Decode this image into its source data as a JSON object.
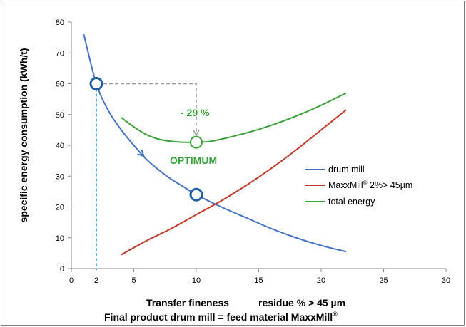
{
  "chart_data": {
    "type": "line",
    "ylabel": "specific energy consumption (kWh/t)",
    "xlabel_line1_a": "Transfer fineness",
    "xlabel_line1_b": "residue % > 45 µm",
    "xlabel_line2": "Final product drum mill  =  feed material MaxxMill",
    "xlabel_line2_sup": "®",
    "xlim": [
      0,
      30
    ],
    "ylim": [
      0,
      80
    ],
    "x_ticks": [
      "0",
      "2",
      "5",
      "10",
      "15",
      "20",
      "25",
      "30"
    ],
    "x_tick_values": [
      0,
      2,
      5,
      10,
      15,
      20,
      25,
      30
    ],
    "y_ticks": [
      "0",
      "10",
      "20",
      "30",
      "40",
      "50",
      "60",
      "70",
      "80"
    ],
    "y_tick_values": [
      0,
      10,
      20,
      30,
      40,
      50,
      60,
      70,
      80
    ],
    "legend_position": "right",
    "series": [
      {
        "name": "drum mill",
        "color": "#4472c4",
        "x": [
          1,
          2,
          3,
          4,
          5,
          6,
          7,
          8,
          9,
          10,
          12,
          14,
          16,
          18,
          20,
          22
        ],
        "y": [
          76,
          60,
          51,
          45,
          40,
          35.5,
          32,
          29,
          26.5,
          24,
          20,
          16.5,
          13,
          10,
          7.5,
          5.5
        ]
      },
      {
        "name": "MaxxMill",
        "name_sup": "®",
        "name_suffix": " 2%> 45µm",
        "color": "#c0392b",
        "x": [
          4,
          6,
          8,
          10,
          12,
          14,
          16,
          18,
          20,
          22
        ],
        "y": [
          4.5,
          9,
          13,
          17.5,
          22,
          27,
          32.5,
          38.5,
          45,
          51.5
        ]
      },
      {
        "name": "total energy",
        "color": "#3aa13a",
        "x": [
          4,
          5,
          6,
          7,
          8,
          9,
          10,
          11,
          12,
          14,
          16,
          18,
          20,
          22
        ],
        "y": [
          49,
          46,
          43.5,
          42,
          41.3,
          41,
          41,
          41.2,
          42,
          44,
          46.5,
          49.5,
          53,
          57
        ]
      }
    ],
    "annotations": {
      "reduction": "- 29 %",
      "optimum": "OPTIMUM",
      "start_point": [
        2,
        60
      ],
      "optimum_point": [
        10,
        41
      ],
      "drum_point": [
        10,
        24
      ]
    }
  }
}
